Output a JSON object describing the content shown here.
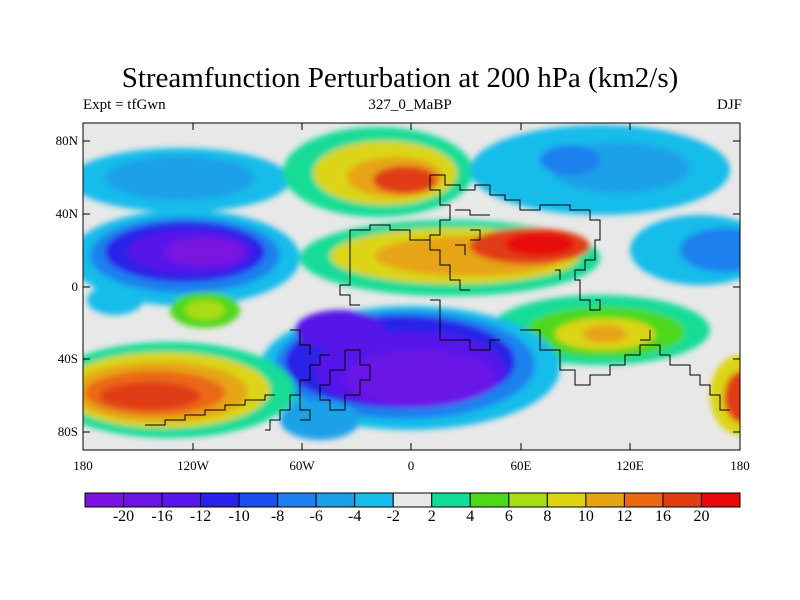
{
  "title": "Streamfunction Perturbation at 200 hPa (km2/s)",
  "left_string": "Expt = tfGwn",
  "center_string": "327_0_MaBP",
  "right_string": "DJF",
  "lat_ticks": [
    "80N",
    "40N",
    "0",
    "40S",
    "80S"
  ],
  "lon_ticks": [
    "180",
    "120W",
    "60W",
    "0",
    "60E",
    "120E",
    "180"
  ],
  "colorbar": {
    "labels": [
      "-20",
      "-16",
      "-12",
      "-10",
      "-8",
      "-6",
      "-4",
      "-2",
      "2",
      "4",
      "6",
      "8",
      "10",
      "12",
      "16",
      "20"
    ],
    "colors": [
      "#7a12e0",
      "#6a14e6",
      "#5618ea",
      "#2a22e8",
      "#1a4ef0",
      "#1e80ee",
      "#1ea0e8",
      "#18bcea",
      "#e8e8e8",
      "#12dc96",
      "#4ed81c",
      "#a8dc14",
      "#dcd412",
      "#e6a414",
      "#ea6814",
      "#e03e12",
      "#e80a0a"
    ]
  }
}
